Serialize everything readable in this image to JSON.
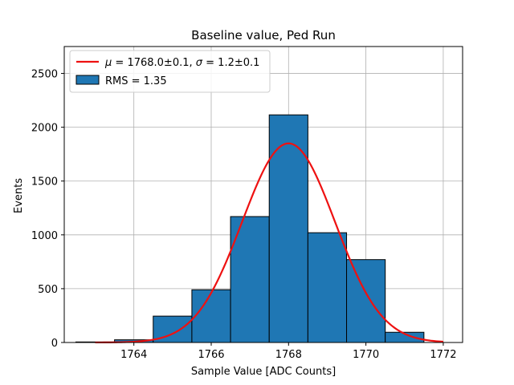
{
  "chart_data": {
    "type": "bar",
    "title": "Baseline value, Ped Run",
    "xlabel": "Sample Value [ADC Counts]",
    "ylabel": "Events",
    "xlim": [
      1762.2,
      1772.5
    ],
    "ylim": [
      0,
      2750
    ],
    "xticks": [
      1764,
      1766,
      1768,
      1770,
      1772
    ],
    "yticks": [
      0,
      500,
      1000,
      1500,
      2000,
      2500
    ],
    "grid": true,
    "legend_position": "upper-left",
    "histogram": {
      "name": "RMS = 1.35",
      "color": "#1f77b4",
      "edgecolor": "#000000",
      "bin_edges": [
        1762.5,
        1763.5,
        1764.5,
        1765.5,
        1766.5,
        1767.5,
        1768.5,
        1769.5,
        1770.5,
        1771.5
      ],
      "counts": [
        5,
        25,
        245,
        490,
        1170,
        2115,
        1020,
        770,
        95
      ]
    },
    "fit": {
      "name": "μ = 1768.0±0.1, σ = 1.2±0.1",
      "type": "gaussian",
      "color": "#ee1111",
      "amplitude": 1850,
      "mu": 1768.0,
      "sigma": 1.2,
      "x_range": [
        1763.0,
        1772.0
      ]
    }
  },
  "legend": {
    "fit_label_prefix": "μ",
    "fit_label_mid": " = 1768.0±0.1, ",
    "fit_label_sigma": "σ",
    "fit_label_suffix": " = 1.2±0.1",
    "hist_label": "RMS = 1.35"
  }
}
